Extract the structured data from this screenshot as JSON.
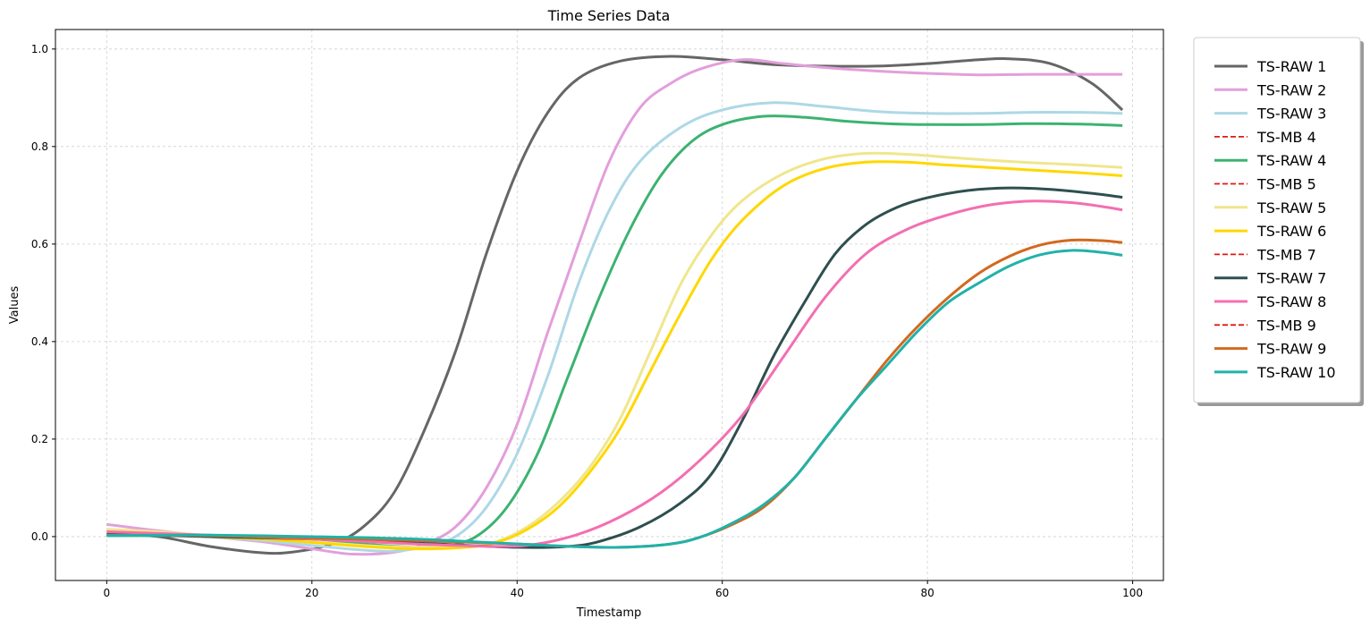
{
  "chart_data": {
    "type": "line",
    "title": "Time Series Data",
    "xlabel": "Timestamp",
    "ylabel": "Values",
    "xlim": [
      -5,
      103
    ],
    "ylim": [
      -0.09,
      1.04
    ],
    "xticks": [
      0,
      20,
      40,
      60,
      80,
      100
    ],
    "yticks": [
      0.0,
      0.2,
      0.4,
      0.6,
      0.8,
      1.0
    ],
    "xtick_labels": [
      "0",
      "20",
      "40",
      "60",
      "80",
      "100"
    ],
    "ytick_labels": [
      "0.0",
      "0.2",
      "0.4",
      "0.6",
      "0.8",
      "1.0"
    ],
    "grid": true,
    "legend_position": "outside-right-top",
    "series": [
      {
        "name": "TS-RAW 1",
        "color": "#666666",
        "style": "solid",
        "points": [
          [
            0,
            0.005
          ],
          [
            5,
            0.0
          ],
          [
            10,
            -0.02
          ],
          [
            15,
            -0.033
          ],
          [
            18,
            -0.032
          ],
          [
            22,
            -0.015
          ],
          [
            25,
            0.02
          ],
          [
            28,
            0.09
          ],
          [
            31,
            0.22
          ],
          [
            34,
            0.38
          ],
          [
            37,
            0.58
          ],
          [
            40,
            0.75
          ],
          [
            43,
            0.87
          ],
          [
            46,
            0.94
          ],
          [
            50,
            0.975
          ],
          [
            55,
            0.985
          ],
          [
            60,
            0.978
          ],
          [
            65,
            0.968
          ],
          [
            70,
            0.965
          ],
          [
            75,
            0.965
          ],
          [
            80,
            0.97
          ],
          [
            85,
            0.978
          ],
          [
            88,
            0.98
          ],
          [
            92,
            0.97
          ],
          [
            96,
            0.93
          ],
          [
            99,
            0.875
          ]
        ]
      },
      {
        "name": "TS-RAW 2",
        "color": "#e29fdb",
        "style": "solid",
        "points": [
          [
            0,
            0.025
          ],
          [
            5,
            0.012
          ],
          [
            10,
            0.0
          ],
          [
            15,
            -0.01
          ],
          [
            20,
            -0.025
          ],
          [
            24,
            -0.036
          ],
          [
            28,
            -0.032
          ],
          [
            31,
            -0.015
          ],
          [
            34,
            0.02
          ],
          [
            37,
            0.1
          ],
          [
            40,
            0.23
          ],
          [
            43,
            0.42
          ],
          [
            46,
            0.6
          ],
          [
            49,
            0.77
          ],
          [
            52,
            0.88
          ],
          [
            55,
            0.93
          ],
          [
            58,
            0.96
          ],
          [
            62,
            0.978
          ],
          [
            66,
            0.97
          ],
          [
            70,
            0.962
          ],
          [
            75,
            0.955
          ],
          [
            80,
            0.95
          ],
          [
            85,
            0.947
          ],
          [
            90,
            0.948
          ],
          [
            95,
            0.948
          ],
          [
            99,
            0.948
          ]
        ]
      },
      {
        "name": "TS-RAW 3",
        "color": "#add8e6",
        "style": "solid",
        "points": [
          [
            0,
            0.01
          ],
          [
            5,
            0.005
          ],
          [
            10,
            0.0
          ],
          [
            15,
            -0.008
          ],
          [
            20,
            -0.018
          ],
          [
            24,
            -0.026
          ],
          [
            28,
            -0.03
          ],
          [
            31,
            -0.02
          ],
          [
            34,
            0.0
          ],
          [
            37,
            0.06
          ],
          [
            40,
            0.17
          ],
          [
            43,
            0.33
          ],
          [
            46,
            0.52
          ],
          [
            49,
            0.67
          ],
          [
            52,
            0.77
          ],
          [
            56,
            0.84
          ],
          [
            60,
            0.875
          ],
          [
            65,
            0.89
          ],
          [
            70,
            0.882
          ],
          [
            75,
            0.872
          ],
          [
            80,
            0.868
          ],
          [
            85,
            0.868
          ],
          [
            90,
            0.87
          ],
          [
            95,
            0.87
          ],
          [
            99,
            0.868
          ]
        ]
      },
      {
        "name": "TS-MB 4",
        "color": "#dd1c13",
        "style": "dashed",
        "points": []
      },
      {
        "name": "TS-RAW 4",
        "color": "#3cb371",
        "style": "solid",
        "points": [
          [
            0,
            0.002
          ],
          [
            5,
            0.002
          ],
          [
            10,
            0.002
          ],
          [
            15,
            0.0
          ],
          [
            20,
            -0.005
          ],
          [
            25,
            -0.015
          ],
          [
            30,
            -0.022
          ],
          [
            33,
            -0.02
          ],
          [
            36,
            0.0
          ],
          [
            39,
            0.06
          ],
          [
            42,
            0.17
          ],
          [
            45,
            0.33
          ],
          [
            48,
            0.49
          ],
          [
            51,
            0.63
          ],
          [
            54,
            0.74
          ],
          [
            57,
            0.81
          ],
          [
            60,
            0.845
          ],
          [
            64,
            0.862
          ],
          [
            68,
            0.86
          ],
          [
            72,
            0.852
          ],
          [
            76,
            0.847
          ],
          [
            80,
            0.845
          ],
          [
            85,
            0.845
          ],
          [
            90,
            0.847
          ],
          [
            95,
            0.846
          ],
          [
            99,
            0.843
          ]
        ]
      },
      {
        "name": "TS-MB 5",
        "color": "#dd1c13",
        "style": "dashed",
        "points": []
      },
      {
        "name": "TS-RAW 5",
        "color": "#f0e68c",
        "style": "solid",
        "points": [
          [
            0,
            0.015
          ],
          [
            5,
            0.01
          ],
          [
            10,
            0.002
          ],
          [
            15,
            -0.004
          ],
          [
            20,
            -0.01
          ],
          [
            25,
            -0.018
          ],
          [
            30,
            -0.022
          ],
          [
            35,
            -0.02
          ],
          [
            38,
            -0.01
          ],
          [
            41,
            0.02
          ],
          [
            44,
            0.07
          ],
          [
            47,
            0.14
          ],
          [
            50,
            0.24
          ],
          [
            53,
            0.38
          ],
          [
            56,
            0.52
          ],
          [
            59,
            0.62
          ],
          [
            62,
            0.69
          ],
          [
            66,
            0.745
          ],
          [
            70,
            0.775
          ],
          [
            74,
            0.786
          ],
          [
            78,
            0.784
          ],
          [
            82,
            0.778
          ],
          [
            86,
            0.772
          ],
          [
            90,
            0.767
          ],
          [
            95,
            0.762
          ],
          [
            99,
            0.757
          ]
        ]
      },
      {
        "name": "TS-RAW 6",
        "color": "#ffd700",
        "style": "solid",
        "points": [
          [
            0,
            0.008
          ],
          [
            5,
            0.005
          ],
          [
            10,
            0.0
          ],
          [
            15,
            -0.005
          ],
          [
            20,
            -0.012
          ],
          [
            25,
            -0.02
          ],
          [
            30,
            -0.025
          ],
          [
            35,
            -0.022
          ],
          [
            38,
            -0.012
          ],
          [
            41,
            0.015
          ],
          [
            44,
            0.06
          ],
          [
            47,
            0.13
          ],
          [
            50,
            0.22
          ],
          [
            53,
            0.34
          ],
          [
            56,
            0.46
          ],
          [
            59,
            0.57
          ],
          [
            62,
            0.65
          ],
          [
            66,
            0.72
          ],
          [
            70,
            0.755
          ],
          [
            74,
            0.768
          ],
          [
            78,
            0.768
          ],
          [
            82,
            0.762
          ],
          [
            86,
            0.757
          ],
          [
            90,
            0.752
          ],
          [
            95,
            0.746
          ],
          [
            99,
            0.74
          ]
        ]
      },
      {
        "name": "TS-MB 7",
        "color": "#dd1c13",
        "style": "dashed",
        "points": []
      },
      {
        "name": "TS-RAW 7",
        "color": "#2f4f4f",
        "style": "solid",
        "points": [
          [
            0,
            0.005
          ],
          [
            10,
            0.0
          ],
          [
            20,
            -0.005
          ],
          [
            30,
            -0.013
          ],
          [
            40,
            -0.022
          ],
          [
            45,
            -0.02
          ],
          [
            48,
            -0.01
          ],
          [
            52,
            0.02
          ],
          [
            56,
            0.07
          ],
          [
            59,
            0.13
          ],
          [
            62,
            0.24
          ],
          [
            65,
            0.37
          ],
          [
            68,
            0.48
          ],
          [
            71,
            0.58
          ],
          [
            74,
            0.64
          ],
          [
            77,
            0.675
          ],
          [
            80,
            0.695
          ],
          [
            84,
            0.71
          ],
          [
            88,
            0.715
          ],
          [
            92,
            0.712
          ],
          [
            96,
            0.704
          ],
          [
            99,
            0.696
          ]
        ]
      },
      {
        "name": "TS-RAW 8",
        "color": "#f36fb1",
        "style": "solid",
        "points": [
          [
            0,
            0.01
          ],
          [
            10,
            0.003
          ],
          [
            20,
            -0.005
          ],
          [
            30,
            -0.015
          ],
          [
            38,
            -0.02
          ],
          [
            42,
            -0.015
          ],
          [
            46,
            0.005
          ],
          [
            50,
            0.04
          ],
          [
            54,
            0.09
          ],
          [
            58,
            0.16
          ],
          [
            62,
            0.25
          ],
          [
            66,
            0.37
          ],
          [
            70,
            0.49
          ],
          [
            74,
            0.58
          ],
          [
            78,
            0.63
          ],
          [
            82,
            0.66
          ],
          [
            86,
            0.68
          ],
          [
            90,
            0.688
          ],
          [
            94,
            0.685
          ],
          [
            97,
            0.677
          ],
          [
            99,
            0.67
          ]
        ]
      },
      {
        "name": "TS-MB 9",
        "color": "#dd1c13",
        "style": "dashed",
        "points": []
      },
      {
        "name": "TS-RAW 9",
        "color": "#d2691e",
        "style": "solid",
        "points": [
          [
            0,
            0.003
          ],
          [
            10,
            0.002
          ],
          [
            20,
            -0.003
          ],
          [
            30,
            -0.008
          ],
          [
            40,
            -0.015
          ],
          [
            45,
            -0.02
          ],
          [
            50,
            -0.022
          ],
          [
            55,
            -0.015
          ],
          [
            58,
            0.0
          ],
          [
            61,
            0.025
          ],
          [
            64,
            0.06
          ],
          [
            67,
            0.12
          ],
          [
            70,
            0.2
          ],
          [
            73,
            0.28
          ],
          [
            76,
            0.36
          ],
          [
            79,
            0.43
          ],
          [
            82,
            0.49
          ],
          [
            85,
            0.54
          ],
          [
            88,
            0.575
          ],
          [
            91,
            0.598
          ],
          [
            94,
            0.608
          ],
          [
            97,
            0.607
          ],
          [
            99,
            0.603
          ]
        ]
      },
      {
        "name": "TS-RAW 10",
        "color": "#20b2aa",
        "style": "solid",
        "points": [
          [
            0,
            0.002
          ],
          [
            10,
            0.003
          ],
          [
            20,
            0.0
          ],
          [
            30,
            -0.005
          ],
          [
            40,
            -0.015
          ],
          [
            45,
            -0.02
          ],
          [
            50,
            -0.022
          ],
          [
            55,
            -0.015
          ],
          [
            58,
            0.0
          ],
          [
            61,
            0.028
          ],
          [
            64,
            0.065
          ],
          [
            67,
            0.12
          ],
          [
            70,
            0.2
          ],
          [
            73,
            0.28
          ],
          [
            76,
            0.35
          ],
          [
            79,
            0.42
          ],
          [
            82,
            0.48
          ],
          [
            85,
            0.52
          ],
          [
            88,
            0.555
          ],
          [
            91,
            0.578
          ],
          [
            94,
            0.587
          ],
          [
            97,
            0.583
          ],
          [
            99,
            0.577
          ]
        ]
      }
    ]
  }
}
